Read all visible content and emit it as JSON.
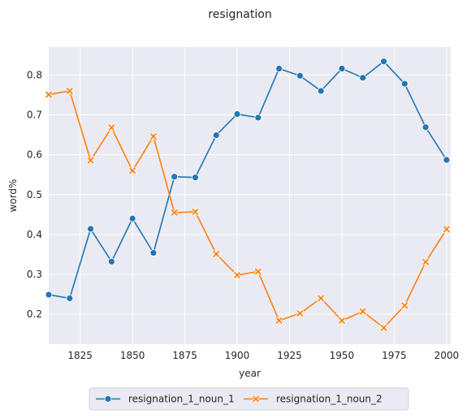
{
  "chart_data": {
    "type": "line",
    "title": "resignation",
    "xlabel": "year",
    "ylabel": "word%",
    "xlim": [
      1810,
      2002
    ],
    "ylim": [
      0.125,
      0.87
    ],
    "xticks": [
      1825,
      1850,
      1875,
      1900,
      1925,
      1950,
      1975,
      2000
    ],
    "yticks": [
      0.2,
      0.3,
      0.4,
      0.5,
      0.6,
      0.7,
      0.8
    ],
    "ytick_labels": [
      "0.2",
      "0.3",
      "0.4",
      "0.5",
      "0.6",
      "0.7",
      "0.8"
    ],
    "grid": true,
    "legend_position": "below",
    "x": [
      1810,
      1820,
      1830,
      1840,
      1850,
      1860,
      1870,
      1880,
      1890,
      1900,
      1910,
      1920,
      1930,
      1940,
      1950,
      1960,
      1970,
      1980,
      1990,
      2000
    ],
    "series": [
      {
        "name": "resignation_1_noun_1",
        "color": "#1f77b4",
        "marker": "circle",
        "values": [
          0.249,
          0.24,
          0.414,
          0.332,
          0.44,
          0.354,
          0.545,
          0.543,
          0.649,
          0.702,
          0.693,
          0.816,
          0.798,
          0.76,
          0.816,
          0.793,
          0.834,
          0.778,
          0.669,
          0.587
        ]
      },
      {
        "name": "resignation_1_noun_2",
        "color": "#ff7f0e",
        "marker": "x",
        "values": [
          0.751,
          0.76,
          0.586,
          0.668,
          0.56,
          0.646,
          0.455,
          0.457,
          0.351,
          0.298,
          0.307,
          0.184,
          0.202,
          0.24,
          0.184,
          0.207,
          0.166,
          0.222,
          0.331,
          0.413
        ]
      }
    ]
  }
}
